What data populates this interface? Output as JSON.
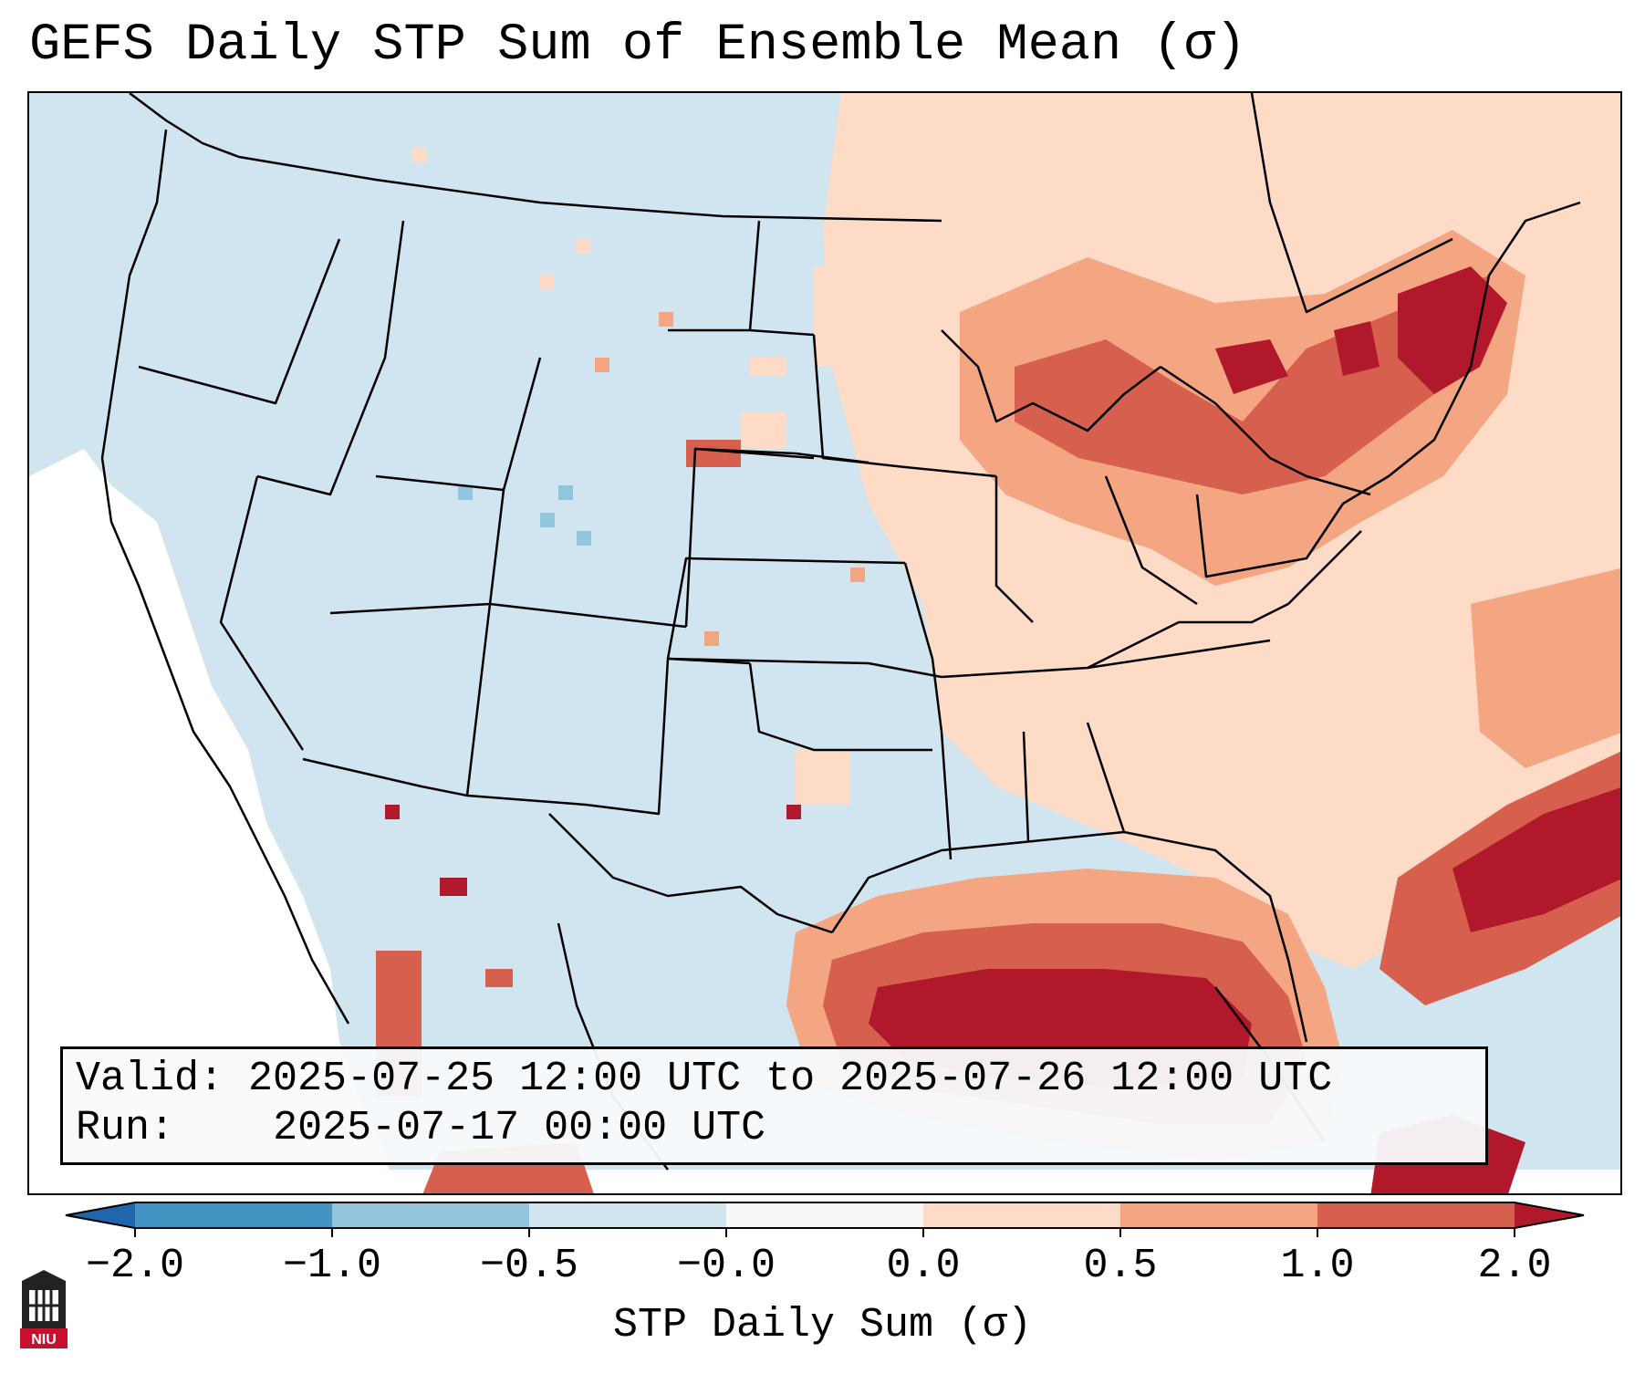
{
  "title": "GEFS Daily STP Sum of Ensemble Mean (σ)",
  "info": {
    "valid_label": "Valid:",
    "valid_value": "2025-07-25 12:00 UTC to 2025-07-26 12:00 UTC",
    "run_label": "Run:",
    "run_value": "2025-07-17 00:00 UTC"
  },
  "colorbar": {
    "label": "STP Daily Sum (σ)",
    "ticks": [
      "−2.0",
      "−1.0",
      "−0.5",
      "−0.0",
      "0.0",
      "0.5",
      "1.0",
      "2.0"
    ],
    "bins": [
      {
        "from": -2.0,
        "to": -1.0,
        "color": "#4393c3"
      },
      {
        "from": -1.0,
        "to": -0.5,
        "color": "#92c5de"
      },
      {
        "from": -0.5,
        "to": -0.0,
        "color": "#d1e5f0"
      },
      {
        "from": -0.0,
        "to": 0.0,
        "color": "#f7f7f7"
      },
      {
        "from": 0.0,
        "to": 0.5,
        "color": "#fddbc7"
      },
      {
        "from": 0.5,
        "to": 1.0,
        "color": "#f4a582"
      },
      {
        "from": 1.0,
        "to": 2.0,
        "color": "#d6604d"
      }
    ],
    "under_color": "#2166ac",
    "over_color": "#b2182b"
  },
  "colors": {
    "background": "#d1e5f0",
    "neutral": "#ffffff",
    "low": "#fddbc7",
    "mid": "#f4a582",
    "high": "#d6604d",
    "extreme": "#b2182b",
    "negative": "#92c5de"
  },
  "logo": {
    "text": "NIU"
  }
}
